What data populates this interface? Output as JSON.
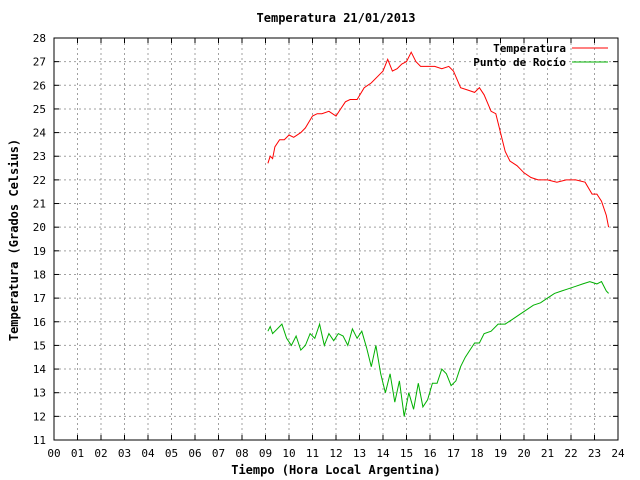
{
  "chart_data": {
    "type": "line",
    "title": "Temperatura 21/01/2013",
    "xlabel": "Tiempo (Hora Local Argentina)",
    "ylabel": "Temperatura (Grados Celsius)",
    "xlim": [
      0,
      24
    ],
    "ylim": [
      11,
      28
    ],
    "x_ticks": [
      "00",
      "01",
      "02",
      "03",
      "04",
      "05",
      "06",
      "07",
      "08",
      "09",
      "10",
      "11",
      "12",
      "13",
      "14",
      "15",
      "16",
      "17",
      "18",
      "19",
      "20",
      "21",
      "22",
      "23",
      "24"
    ],
    "y_ticks": [
      "11",
      "12",
      "13",
      "14",
      "15",
      "16",
      "17",
      "18",
      "19",
      "20",
      "21",
      "22",
      "23",
      "24",
      "25",
      "26",
      "27",
      "28"
    ],
    "grid": true,
    "legend_position": "top-right",
    "series": [
      {
        "name": "Temperatura",
        "color": "#ff0000",
        "x": [
          9.1,
          9.2,
          9.3,
          9.4,
          9.6,
          9.8,
          10.0,
          10.2,
          10.5,
          10.7,
          11.0,
          11.2,
          11.4,
          11.7,
          12.0,
          12.2,
          12.4,
          12.6,
          12.9,
          13.2,
          13.5,
          13.8,
          14.0,
          14.2,
          14.4,
          14.6,
          14.8,
          15.0,
          15.2,
          15.4,
          15.6,
          15.9,
          16.2,
          16.5,
          16.8,
          17.0,
          17.3,
          17.6,
          17.9,
          18.1,
          18.3,
          18.6,
          18.8,
          19.0,
          19.2,
          19.4,
          19.7,
          20.0,
          20.3,
          20.6,
          21.0,
          21.4,
          21.8,
          22.2,
          22.6,
          22.9,
          23.1,
          23.3,
          23.5,
          23.6
        ],
        "y": [
          22.7,
          23.0,
          22.9,
          23.4,
          23.7,
          23.7,
          23.9,
          23.8,
          24.0,
          24.2,
          24.7,
          24.8,
          24.8,
          24.9,
          24.7,
          25.0,
          25.3,
          25.4,
          25.4,
          25.9,
          26.1,
          26.4,
          26.6,
          27.1,
          26.6,
          26.7,
          26.9,
          27.0,
          27.4,
          27.0,
          26.8,
          26.8,
          26.8,
          26.7,
          26.8,
          26.6,
          25.9,
          25.8,
          25.7,
          25.9,
          25.6,
          24.9,
          24.8,
          24.0,
          23.2,
          22.8,
          22.6,
          22.3,
          22.1,
          22.0,
          22.0,
          21.9,
          22.0,
          22.0,
          21.9,
          21.4,
          21.4,
          21.1,
          20.5,
          20.0
        ]
      },
      {
        "name": "Punto de Rocío",
        "color": "#00b000",
        "x": [
          9.1,
          9.2,
          9.3,
          9.5,
          9.7,
          9.9,
          10.1,
          10.3,
          10.5,
          10.7,
          10.9,
          11.1,
          11.3,
          11.5,
          11.7,
          11.9,
          12.1,
          12.3,
          12.5,
          12.7,
          12.9,
          13.1,
          13.3,
          13.5,
          13.7,
          13.9,
          14.1,
          14.3,
          14.5,
          14.7,
          14.9,
          15.1,
          15.3,
          15.5,
          15.7,
          15.9,
          16.1,
          16.3,
          16.5,
          16.7,
          16.9,
          17.1,
          17.3,
          17.5,
          17.7,
          17.9,
          18.1,
          18.3,
          18.6,
          18.9,
          19.2,
          19.5,
          19.8,
          20.1,
          20.4,
          20.7,
          21.0,
          21.3,
          21.6,
          21.9,
          22.2,
          22.5,
          22.8,
          23.1,
          23.3,
          23.5,
          23.6
        ],
        "y": [
          15.6,
          15.8,
          15.5,
          15.7,
          15.9,
          15.3,
          15.0,
          15.4,
          14.8,
          15.0,
          15.5,
          15.3,
          15.9,
          15.0,
          15.5,
          15.2,
          15.5,
          15.4,
          15.0,
          15.7,
          15.3,
          15.6,
          14.9,
          14.1,
          15.0,
          13.8,
          13.0,
          13.8,
          12.6,
          13.5,
          12.0,
          13.0,
          12.3,
          13.4,
          12.4,
          12.7,
          13.4,
          13.4,
          14.0,
          13.8,
          13.3,
          13.5,
          14.1,
          14.5,
          14.8,
          15.1,
          15.1,
          15.5,
          15.6,
          15.9,
          15.9,
          16.1,
          16.3,
          16.5,
          16.7,
          16.8,
          17.0,
          17.2,
          17.3,
          17.4,
          17.5,
          17.6,
          17.7,
          17.6,
          17.7,
          17.3,
          17.2
        ]
      }
    ]
  }
}
